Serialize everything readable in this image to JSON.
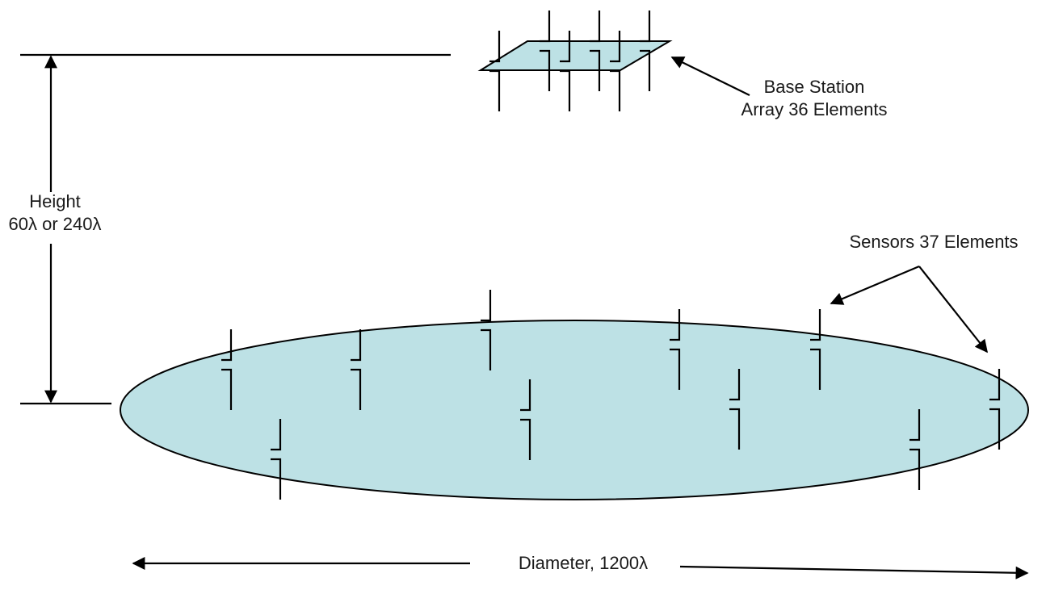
{
  "labels": {
    "base_station_line1": "Base Station",
    "base_station_line2": "Array 36 Elements",
    "height_line1": "Height",
    "height_line2": "60λ or 240λ",
    "sensors": "Sensors 37 Elements",
    "diameter": "Diameter, 1200λ"
  },
  "colors": {
    "fill": "#bde1e5",
    "stroke": "#000000",
    "text": "#1a1a1a"
  },
  "icons": {
    "antenna": "dipole-antenna-icon"
  }
}
